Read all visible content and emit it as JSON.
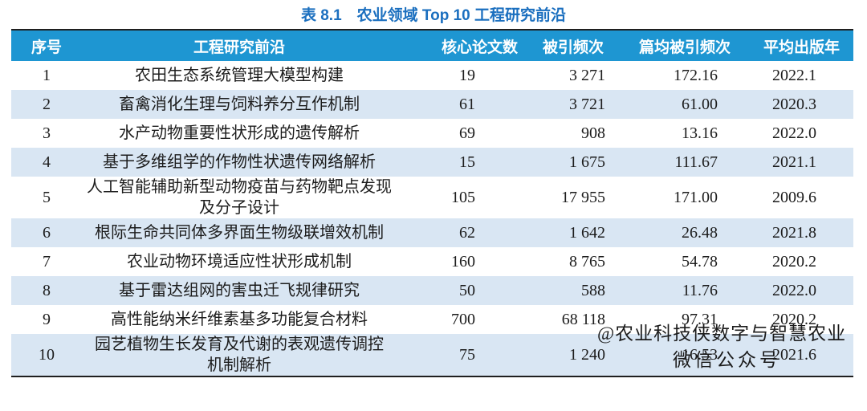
{
  "title": "表 8.1　农业领域 Top 10 工程研究前沿",
  "table": {
    "columns": [
      "序号",
      "工程研究前沿",
      "核心论文数",
      "被引频次",
      "篇均被引频次",
      "平均出版年"
    ],
    "rows": [
      {
        "rank": "1",
        "front": "农田生态系统管理大模型构建",
        "core_papers": "19",
        "citations": "3 271",
        "cpp": "172.16",
        "avg_year": "2022.1"
      },
      {
        "rank": "2",
        "front": "畜禽消化生理与饲料养分互作机制",
        "core_papers": "61",
        "citations": "3 721",
        "cpp": "61.00",
        "avg_year": "2020.3"
      },
      {
        "rank": "3",
        "front": "水产动物重要性状形成的遗传解析",
        "core_papers": "69",
        "citations": "908",
        "cpp": "13.16",
        "avg_year": "2022.0"
      },
      {
        "rank": "4",
        "front": "基于多维组学的作物性状遗传网络解析",
        "core_papers": "15",
        "citations": "1 675",
        "cpp": "111.67",
        "avg_year": "2021.1"
      },
      {
        "rank": "5",
        "front": "人工智能辅助新型动物疫苗与药物靶点发现\n及分子设计",
        "core_papers": "105",
        "citations": "17 955",
        "cpp": "171.00",
        "avg_year": "2009.6"
      },
      {
        "rank": "6",
        "front": "根际生命共同体多界面生物级联增效机制",
        "core_papers": "62",
        "citations": "1 642",
        "cpp": "26.48",
        "avg_year": "2021.8"
      },
      {
        "rank": "7",
        "front": "农业动物环境适应性状形成机制",
        "core_papers": "160",
        "citations": "8 765",
        "cpp": "54.78",
        "avg_year": "2020.2"
      },
      {
        "rank": "8",
        "front": "基于雷达组网的害虫迁飞规律研究",
        "core_papers": "50",
        "citations": "588",
        "cpp": "11.76",
        "avg_year": "2022.0"
      },
      {
        "rank": "9",
        "front": "高性能纳米纤维素基多功能复合材料",
        "core_papers": "700",
        "citations": "68 118",
        "cpp": "97.31",
        "avg_year": "2020.2"
      },
      {
        "rank": "10",
        "front": "园艺植物生长发育及代谢的表观遗传调控\n机制解析",
        "core_papers": "75",
        "citations": "1 240",
        "cpp": "16.53",
        "avg_year": "2021.6"
      }
    ]
  },
  "watermark": {
    "line1": "@农业科技侠数字与智慧农业",
    "line2": "微信公众号"
  },
  "colors": {
    "header_bg": "#1E96D2",
    "row_alt_bg": "#D9E6F3",
    "title_color": "#1B6FBF",
    "text_color": "#1C1C1C"
  }
}
